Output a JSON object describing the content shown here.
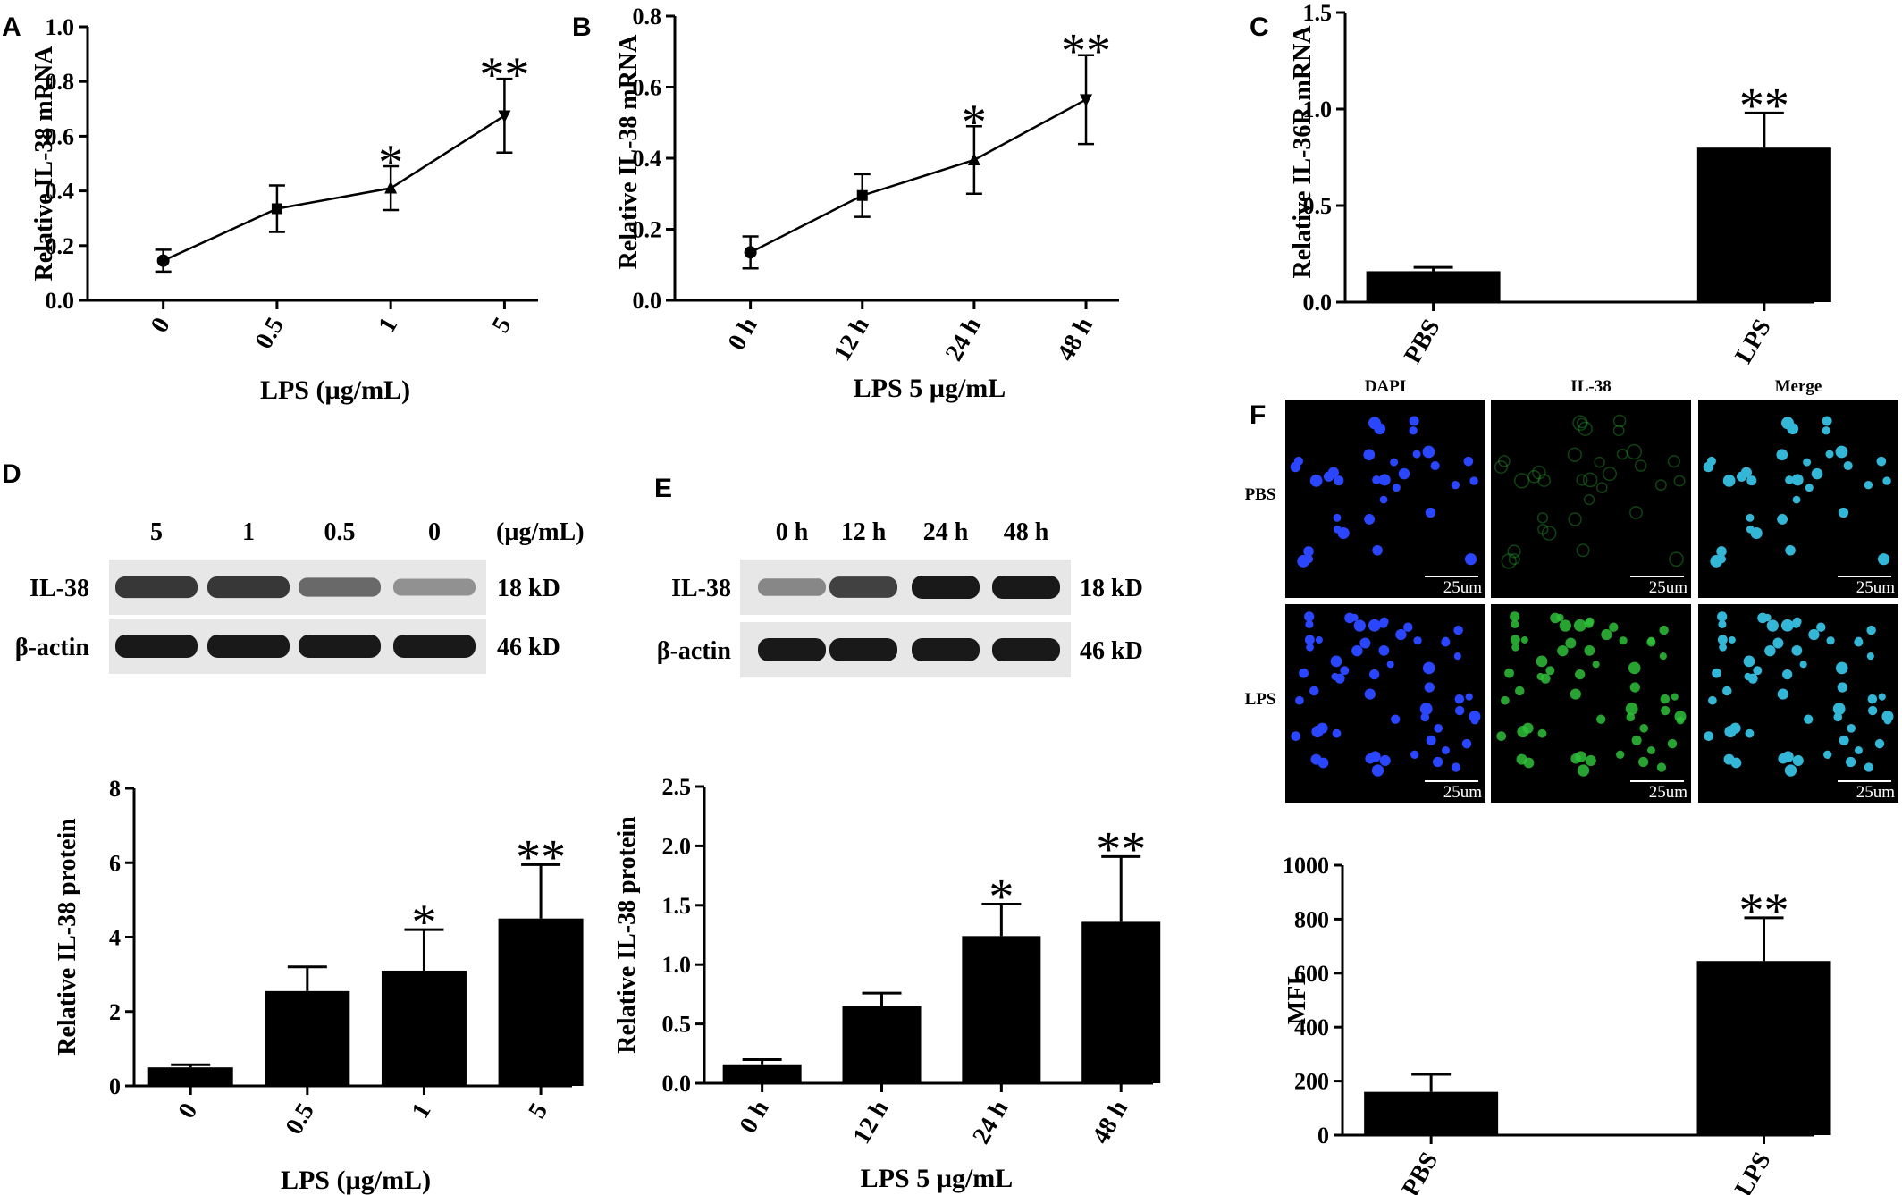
{
  "panels": {
    "A": {
      "label": "A"
    },
    "B": {
      "label": "B"
    },
    "C": {
      "label": "C"
    },
    "D": {
      "label": "D"
    },
    "E": {
      "label": "E"
    },
    "F": {
      "label": "F"
    }
  },
  "chart_data": [
    {
      "id": "A",
      "type": "line",
      "categories": [
        "0",
        "0.5",
        "1",
        "5"
      ],
      "values": [
        0.145,
        0.335,
        0.41,
        0.675
      ],
      "errors": [
        0.04,
        0.085,
        0.08,
        0.135
      ],
      "markers": [
        "circle",
        "square",
        "triangle-up",
        "triangle-down"
      ],
      "significance": [
        "",
        "",
        "*",
        "**"
      ],
      "xlabel": "LPS (µg/mL)",
      "ylabel": "Relative IL-38 mRNA",
      "ylim": [
        0,
        1.0
      ],
      "yticks": [
        "0.0",
        "0.2",
        "0.4",
        "0.6",
        "0.8",
        "1.0"
      ],
      "tick_rotation": -60,
      "grid": false
    },
    {
      "id": "B",
      "type": "line",
      "categories": [
        "0 h",
        "12 h",
        "24 h",
        "48 h"
      ],
      "values": [
        0.135,
        0.295,
        0.395,
        0.565
      ],
      "errors": [
        0.045,
        0.06,
        0.095,
        0.125
      ],
      "markers": [
        "circle",
        "square",
        "triangle-up",
        "triangle-down"
      ],
      "significance": [
        "",
        "",
        "*",
        "**"
      ],
      "xlabel": "LPS 5 µg/mL",
      "ylabel": "Relative IL-38 mRNA",
      "ylim": [
        0,
        0.8
      ],
      "yticks": [
        "0.0",
        "0.2",
        "0.4",
        "0.6",
        "0.8"
      ],
      "tick_rotation": -60,
      "grid": false
    },
    {
      "id": "C",
      "type": "bar",
      "categories": [
        "PBS",
        "LPS"
      ],
      "values": [
        0.16,
        0.8
      ],
      "errors": [
        0.02,
        0.18
      ],
      "significance": [
        "",
        "**"
      ],
      "xlabel": "",
      "ylabel": "Relative IL-36R mRNA",
      "ylim": [
        0,
        1.5
      ],
      "yticks": [
        "0.0",
        "0.5",
        "1.0",
        "1.5"
      ],
      "tick_rotation": -60,
      "grid": false
    },
    {
      "id": "D",
      "type": "bar",
      "categories": [
        "0",
        "0.5",
        "1",
        "5"
      ],
      "values": [
        0.5,
        2.55,
        3.1,
        4.5
      ],
      "errors": [
        0.07,
        0.65,
        1.1,
        1.45
      ],
      "significance": [
        "",
        "",
        "*",
        "**"
      ],
      "xlabel": "LPS (µg/mL)",
      "ylabel": "Relative IL-38 protein",
      "ylim": [
        0,
        8
      ],
      "yticks": [
        "0",
        "2",
        "4",
        "6",
        "8"
      ],
      "tick_rotation": -60,
      "grid": false
    },
    {
      "id": "E",
      "type": "bar",
      "categories": [
        "0 h",
        "12 h",
        "24 h",
        "48 h"
      ],
      "values": [
        0.16,
        0.65,
        1.24,
        1.36
      ],
      "errors": [
        0.04,
        0.11,
        0.27,
        0.55
      ],
      "significance": [
        "",
        "",
        "*",
        "**"
      ],
      "xlabel": "LPS 5 µg/mL",
      "ylabel": "Relative IL-38 protein",
      "ylim": [
        0,
        2.5
      ],
      "yticks": [
        "0.0",
        "0.5",
        "1.0",
        "1.5",
        "2.0",
        "2.5"
      ],
      "tick_rotation": -60,
      "grid": false
    },
    {
      "id": "F",
      "type": "bar",
      "categories": [
        "PBS",
        "LPS"
      ],
      "values": [
        160,
        645
      ],
      "errors": [
        65,
        160
      ],
      "significance": [
        "",
        "**"
      ],
      "xlabel": "",
      "ylabel": "MFI",
      "ylim": [
        0,
        1000
      ],
      "yticks": [
        "0",
        "200",
        "400",
        "600",
        "800",
        "1000"
      ],
      "tick_rotation": -60,
      "grid": false
    }
  ],
  "blot_D": {
    "lanes": [
      "5",
      "1",
      "0.5",
      "0"
    ],
    "unit": "(µg/mL)",
    "rows": [
      {
        "name": "IL-38",
        "size": "18 kD",
        "intensity": [
          0.85,
          0.85,
          0.6,
          0.4
        ]
      },
      {
        "name": "β-actin",
        "size": "46 kD",
        "intensity": [
          1,
          1,
          1,
          1
        ]
      }
    ]
  },
  "blot_E": {
    "lanes": [
      "0 h",
      "12 h",
      "24 h",
      "48 h"
    ],
    "rows": [
      {
        "name": "IL-38",
        "size": "18 kD",
        "intensity": [
          0.45,
          0.8,
          1,
          1
        ]
      },
      {
        "name": "β-actin",
        "size": "46 kD",
        "intensity": [
          1,
          1,
          1,
          1
        ]
      }
    ]
  },
  "microscopy": {
    "columns": [
      "DAPI",
      "IL-38",
      "Merge"
    ],
    "rows": [
      "PBS",
      "LPS"
    ],
    "scale_bar": "25um",
    "colors": {
      "dapi": "#2a46ff",
      "il38": "#2fbf3a",
      "merge": "#34b6d6"
    }
  }
}
